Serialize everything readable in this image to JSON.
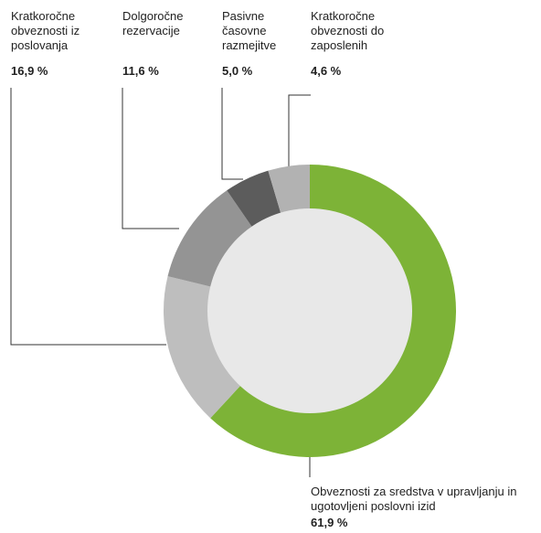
{
  "chart_data": {
    "type": "donut",
    "categories": [
      "Obveznosti za sredstva v upravljanju in ugotovljeni poslovni izid",
      "Kratkoročne obveznosti iz poslovanja",
      "Dolgoročne rezervacije",
      "Pasivne časovne razmejitve",
      "Kratkoročne obveznosti do zaposlenih"
    ],
    "values": [
      61.9,
      16.9,
      11.6,
      5.0,
      4.6
    ],
    "value_labels": [
      "61,9 %",
      "16,9 %",
      "11,6 %",
      "5,0 %",
      "4,6 %"
    ],
    "colors": [
      "#7db337",
      "#bebebe",
      "#949494",
      "#5c5c5c",
      "#b2b2b2"
    ]
  }
}
